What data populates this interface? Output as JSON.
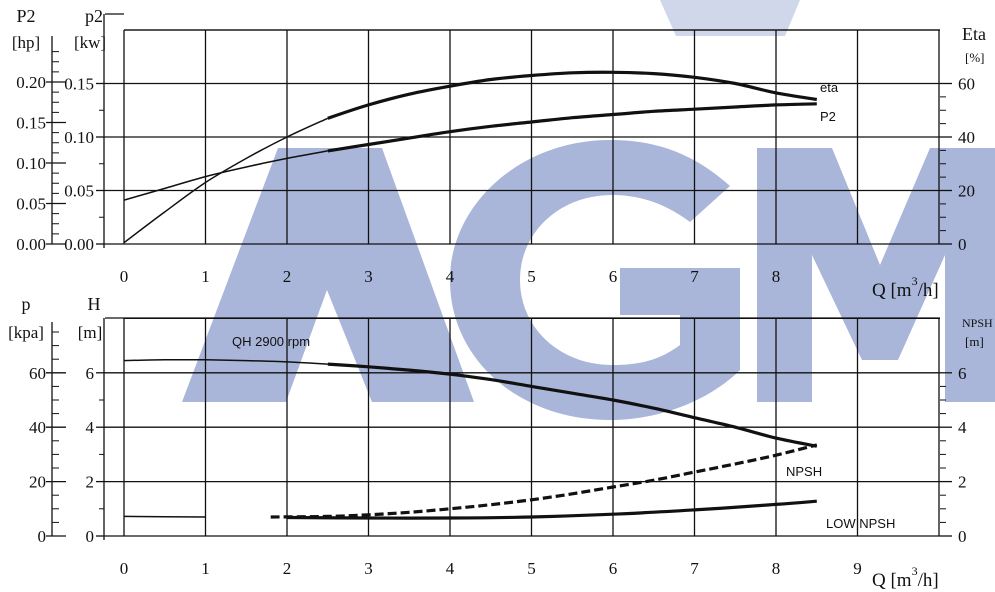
{
  "watermark": {
    "text": "AGM",
    "color": "#9aa9d4"
  },
  "colors": {
    "line": "#111111",
    "grid": "#111111"
  },
  "chart_data": [
    {
      "type": "line",
      "name": "power-efficiency",
      "xlabel": "Q [m³/h]",
      "xlabel_parts": {
        "q": "Q",
        "unit_pre": "[m",
        "sup": "3",
        "unit_post": "/h]"
      },
      "xticks": [
        "0",
        "1",
        "2",
        "3",
        "4",
        "5",
        "6",
        "7",
        "8"
      ],
      "xlim": [
        0,
        10
      ],
      "left_outer_axis": {
        "title": "P2",
        "unit": "[hp]",
        "ticks": [
          "0.00",
          "0.05",
          "0.10",
          "0.15",
          "0.20"
        ]
      },
      "left_inner_axis": {
        "title": "p2",
        "unit": "[kw]",
        "ticks": [
          "0.00",
          "0.05",
          "0.10",
          "0.15"
        ],
        "ylim": [
          0,
          0.2
        ]
      },
      "right_axis": {
        "title": "Eta",
        "unit": "[%]",
        "ticks": [
          "0",
          "20",
          "40",
          "60"
        ],
        "ylim": [
          0,
          80
        ]
      },
      "series": [
        {
          "name": "eta",
          "axis": "right",
          "x": [
            0,
            0.5,
            1,
            1.5,
            2,
            2.5,
            3,
            3.5,
            4,
            4.5,
            5,
            5.5,
            6,
            6.5,
            7,
            7.5,
            8,
            8.5
          ],
          "y": [
            0.5,
            12,
            23,
            32,
            40,
            47,
            52,
            56,
            59,
            61.5,
            63,
            64,
            64.2,
            63.7,
            62.3,
            60,
            56.5,
            54
          ],
          "bold_from": 2.5
        },
        {
          "name": "P2",
          "axis": "left_inner",
          "x": [
            0,
            0.5,
            1,
            1.5,
            2,
            2.5,
            3,
            3.5,
            4,
            4.5,
            5,
            5.5,
            6,
            6.5,
            7,
            7.5,
            8,
            8.5
          ],
          "y": [
            0.041,
            0.052,
            0.063,
            0.072,
            0.08,
            0.087,
            0.093,
            0.099,
            0.105,
            0.11,
            0.114,
            0.118,
            0.121,
            0.124,
            0.126,
            0.128,
            0.13,
            0.131
          ],
          "bold_from": 2.5
        }
      ]
    },
    {
      "type": "line",
      "name": "head-npsh",
      "xlabel": "Q [m³/h]",
      "xlabel_parts": {
        "q": "Q",
        "unit_pre": "[m",
        "sup": "3",
        "unit_post": "/h]"
      },
      "xticks": [
        "0",
        "1",
        "2",
        "3",
        "4",
        "5",
        "6",
        "7",
        "8",
        "9"
      ],
      "xlim": [
        0,
        10
      ],
      "left_outer_axis": {
        "title": "p",
        "unit": "[kpa]",
        "ticks": [
          "0",
          "20",
          "40",
          "60"
        ]
      },
      "left_inner_axis": {
        "title": "H",
        "unit": "[m]",
        "ticks": [
          "0",
          "2",
          "4",
          "6"
        ],
        "ylim": [
          0,
          8
        ]
      },
      "right_axis": {
        "title": "NPSH",
        "unit": "[m]",
        "ticks": [
          "0",
          "2",
          "4",
          "6"
        ],
        "ylim": [
          0,
          8
        ]
      },
      "annotations": [
        "QH 2900 rpm",
        "NPSH",
        "LOW NPSH"
      ],
      "series": [
        {
          "name": "QH 2900 rpm",
          "x": [
            0,
            0.5,
            1,
            1.5,
            2,
            2.5,
            3,
            3.5,
            4,
            4.5,
            5,
            5.5,
            6,
            6.5,
            7,
            7.5,
            8,
            8.5
          ],
          "y": [
            6.45,
            6.48,
            6.48,
            6.45,
            6.4,
            6.32,
            6.22,
            6.1,
            5.95,
            5.75,
            5.5,
            5.25,
            5.0,
            4.7,
            4.35,
            4.0,
            3.6,
            3.3
          ],
          "bold_from": 2.5
        },
        {
          "name": "NPSH",
          "style": "dashed",
          "x": [
            1.8,
            2.5,
            3,
            3.5,
            4,
            4.5,
            5,
            5.5,
            6,
            6.5,
            7,
            7.5,
            8,
            8.5
          ],
          "y": [
            0.7,
            0.72,
            0.78,
            0.87,
            1.0,
            1.15,
            1.33,
            1.55,
            1.8,
            2.05,
            2.35,
            2.65,
            2.97,
            3.35
          ]
        },
        {
          "name": "LOW NPSH",
          "x": [
            0,
            1,
            2,
            3,
            4,
            5,
            6,
            7,
            8,
            8.5
          ],
          "y": [
            0.72,
            0.7,
            0.68,
            0.66,
            0.66,
            0.7,
            0.8,
            0.96,
            1.16,
            1.28
          ],
          "bold_from": 1.8
        }
      ]
    }
  ]
}
